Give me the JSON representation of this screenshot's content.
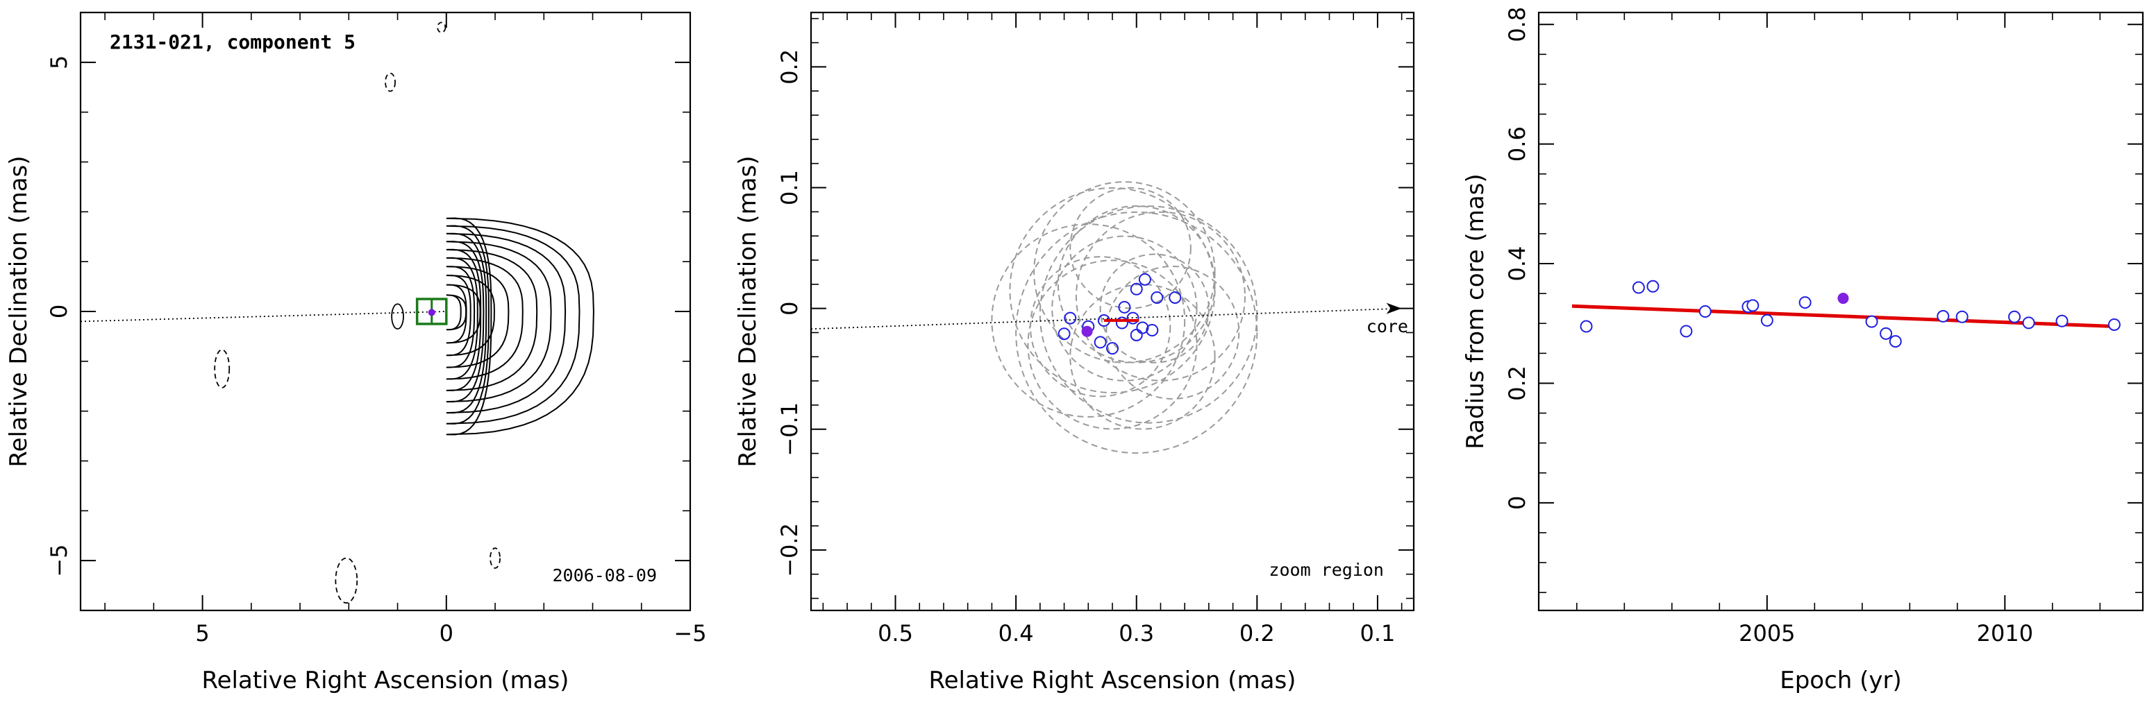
{
  "chart_data": [
    {
      "type": "contour",
      "panel": "contour-map",
      "title": "2131-021, component 5",
      "epoch_label": "2006-08-09",
      "xlabel": "Relative Right Ascension (mas)",
      "ylabel": "Relative Declination (mas)",
      "xlim": [
        7.5,
        -5.0
      ],
      "ylim": [
        -6.0,
        6.0
      ],
      "xticks": [
        {
          "v": 5,
          "label": "5"
        },
        {
          "v": 0,
          "label": "0"
        },
        {
          "v": -5,
          "label": "−5"
        }
      ],
      "yticks": [
        {
          "v": 5,
          "label": "5"
        },
        {
          "v": 0,
          "label": "0"
        },
        {
          "v": -5,
          "label": "−5"
        }
      ],
      "contour_levels": 10,
      "core_position": [
        0,
        0
      ],
      "component_position": [
        0.3,
        -0.02
      ],
      "zoom_box": {
        "x": [
          0.6,
          0.0
        ],
        "y": [
          -0.25,
          0.25
        ]
      },
      "colors": {
        "contours": "#000000",
        "zoom_box": "#1a7a1a",
        "component": "#7a18e0",
        "axis_line": "#000000"
      }
    },
    {
      "type": "scatter",
      "panel": "zoom-region",
      "annotation_core": "core",
      "annotation_zoom": "zoom region",
      "xlabel": "Relative Right Ascension (mas)",
      "ylabel": "Relative Declination (mas)",
      "xlim": [
        0.57,
        0.07
      ],
      "ylim": [
        -0.25,
        0.245
      ],
      "xticks": [
        {
          "v": 0.5,
          "label": "0.5"
        },
        {
          "v": 0.4,
          "label": "0.4"
        },
        {
          "v": 0.3,
          "label": "0.3"
        },
        {
          "v": 0.2,
          "label": "0.2"
        },
        {
          "v": 0.1,
          "label": "0.1"
        }
      ],
      "yticks": [
        {
          "v": 0.2,
          "label": "0.2"
        },
        {
          "v": 0.1,
          "label": "0.1"
        },
        {
          "v": 0.0,
          "label": "0"
        },
        {
          "v": -0.1,
          "label": "−0.1"
        },
        {
          "v": -0.2,
          "label": "−0.2"
        }
      ],
      "points": [
        {
          "x": 0.355,
          "y": -0.008
        },
        {
          "x": 0.36,
          "y": -0.021
        },
        {
          "x": 0.34,
          "y": -0.015
        },
        {
          "x": 0.33,
          "y": -0.028
        },
        {
          "x": 0.32,
          "y": -0.033
        },
        {
          "x": 0.312,
          "y": -0.012
        },
        {
          "x": 0.31,
          "y": 0.001
        },
        {
          "x": 0.303,
          "y": -0.008
        },
        {
          "x": 0.3,
          "y": 0.016
        },
        {
          "x": 0.3,
          "y": -0.022
        },
        {
          "x": 0.295,
          "y": -0.016
        },
        {
          "x": 0.293,
          "y": 0.024
        },
        {
          "x": 0.287,
          "y": -0.018
        },
        {
          "x": 0.283,
          "y": 0.009
        },
        {
          "x": 0.268,
          "y": 0.009
        },
        {
          "x": 0.327,
          "y": -0.01
        }
      ],
      "highlight_point": {
        "x": 0.341,
        "y": -0.019
      },
      "fit_segment": [
        {
          "x": 0.327,
          "y": -0.01
        },
        {
          "x": 0.298,
          "y": -0.01
        }
      ],
      "uncertainty_circles": [
        {
          "x": 0.33,
          "y": -0.015,
          "r": 0.058
        },
        {
          "x": 0.31,
          "y": 0.0,
          "r": 0.06
        },
        {
          "x": 0.29,
          "y": -0.005,
          "r": 0.09
        },
        {
          "x": 0.3,
          "y": 0.02,
          "r": 0.065
        },
        {
          "x": 0.32,
          "y": -0.03,
          "r": 0.07
        },
        {
          "x": 0.3,
          "y": -0.02,
          "r": 0.1
        },
        {
          "x": 0.28,
          "y": 0.01,
          "r": 0.07
        },
        {
          "x": 0.31,
          "y": 0.03,
          "r": 0.075
        },
        {
          "x": 0.34,
          "y": -0.01,
          "r": 0.08
        },
        {
          "x": 0.27,
          "y": -0.02,
          "r": 0.055
        },
        {
          "x": 0.305,
          "y": 0.05,
          "r": 0.05
        },
        {
          "x": 0.295,
          "y": -0.04,
          "r": 0.06
        },
        {
          "x": 0.32,
          "y": 0.015,
          "r": 0.085
        },
        {
          "x": 0.285,
          "y": 0.0,
          "r": 0.045
        }
      ],
      "colors": {
        "points": "#2020e0",
        "highlight": "#8020e0",
        "fit": "#e00000",
        "circles": "#9a9a9a"
      }
    },
    {
      "type": "scatter",
      "panel": "radius-vs-epoch",
      "xlabel": "Epoch (yr)",
      "ylabel": "Radius from core (mas)",
      "xlim": [
        2000.2,
        2012.9
      ],
      "ylim": [
        -0.18,
        0.82
      ],
      "xticks": [
        {
          "v": 2005,
          "label": "2005"
        },
        {
          "v": 2010,
          "label": "2010"
        }
      ],
      "yticks": [
        {
          "v": 0.0,
          "label": "0"
        },
        {
          "v": 0.2,
          "label": "0.2"
        },
        {
          "v": 0.4,
          "label": "0.4"
        },
        {
          "v": 0.6,
          "label": "0.6"
        },
        {
          "v": 0.8,
          "label": "0.8"
        }
      ],
      "points": [
        {
          "x": 2001.2,
          "y": 0.295
        },
        {
          "x": 2002.3,
          "y": 0.36
        },
        {
          "x": 2002.6,
          "y": 0.362
        },
        {
          "x": 2003.3,
          "y": 0.287
        },
        {
          "x": 2003.7,
          "y": 0.32
        },
        {
          "x": 2004.6,
          "y": 0.328
        },
        {
          "x": 2004.7,
          "y": 0.33
        },
        {
          "x": 2005.0,
          "y": 0.305
        },
        {
          "x": 2005.8,
          "y": 0.335
        },
        {
          "x": 2007.2,
          "y": 0.303
        },
        {
          "x": 2007.5,
          "y": 0.283
        },
        {
          "x": 2007.7,
          "y": 0.27
        },
        {
          "x": 2008.7,
          "y": 0.312
        },
        {
          "x": 2009.1,
          "y": 0.311
        },
        {
          "x": 2010.2,
          "y": 0.311
        },
        {
          "x": 2010.5,
          "y": 0.301
        },
        {
          "x": 2011.2,
          "y": 0.304
        },
        {
          "x": 2012.3,
          "y": 0.298
        }
      ],
      "highlight_point": {
        "x": 2006.6,
        "y": 0.342
      },
      "fit_line": [
        {
          "x": 2000.9,
          "y": 0.329
        },
        {
          "x": 2012.3,
          "y": 0.295
        }
      ],
      "colors": {
        "points": "#2020e0",
        "highlight": "#8020e0",
        "fit": "#e00000"
      }
    }
  ]
}
